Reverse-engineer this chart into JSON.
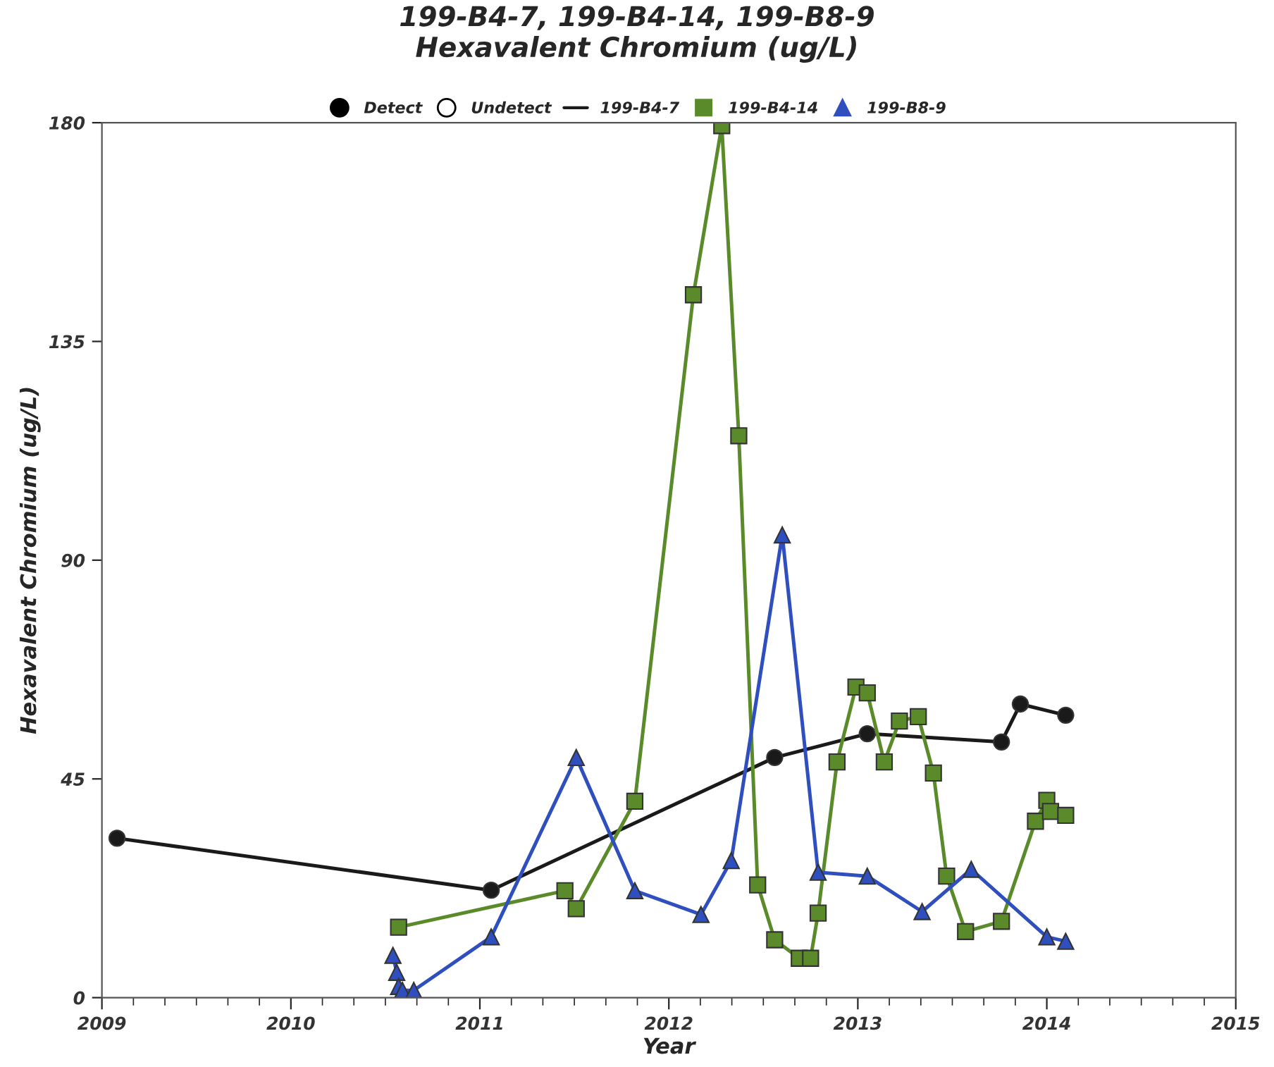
{
  "chart_data": {
    "type": "line",
    "title": "199-B4-7, 199-B4-14, 199-B8-9\nHexavalent Chromium (ug/L)",
    "xlabel": "Year",
    "ylabel": "Hexavalent Chromium (ug/L)",
    "xlim": [
      2009,
      2015
    ],
    "xticks": [
      2009,
      2010,
      2011,
      2012,
      2013,
      2014,
      2015
    ],
    "ylim": [
      0,
      180
    ],
    "yticks": [
      0,
      45,
      90,
      135,
      180
    ],
    "grid": false,
    "legend": "top",
    "annotations": [
      "Detect",
      "Undetect"
    ],
    "series": [
      {
        "name": "199-B4-7",
        "color": "#1a1a1a",
        "marker": "circle",
        "x": [
          2009.08,
          2011.06,
          2012.56,
          2013.05,
          2013.76,
          2013.86,
          2014.1
        ],
        "values": [
          32.8,
          22.1,
          49.4,
          54.3,
          52.6,
          60.4,
          58.1
        ]
      },
      {
        "name": "199-B4-14",
        "color": "#5a8a2a",
        "marker": "square",
        "x": [
          2010.57,
          2011.45,
          2011.51,
          2011.82,
          2012.13,
          2012.28,
          2012.37,
          2012.47,
          2012.56,
          2012.69,
          2012.75,
          2012.79,
          2012.89,
          2012.99,
          2013.05,
          2013.14,
          2013.22,
          2013.32,
          2013.4,
          2013.47,
          2013.57,
          2013.76,
          2013.94,
          2014.0,
          2014.02,
          2014.1
        ],
        "values": [
          14.5,
          22,
          18.3,
          40.4,
          144.6,
          179.4,
          115.6,
          23.2,
          11.9,
          8.1,
          8.1,
          17.4,
          48.5,
          63.9,
          62.7,
          48.5,
          56.9,
          57.8,
          46.2,
          25,
          13.6,
          15.7,
          36.3,
          40.6,
          38.3,
          37.5
        ]
      },
      {
        "name": "199-B8-9",
        "color": "#2f4fbf",
        "marker": "triangle",
        "x": [
          2010.54,
          2010.56,
          2010.57,
          2010.59,
          2010.65,
          2011.06,
          2011.51,
          2011.82,
          2012.17,
          2012.33,
          2012.6,
          2012.79,
          2013.05,
          2013.34,
          2013.6,
          2014.0,
          2014.1
        ],
        "values": [
          8.7,
          5.2,
          2.3,
          1.5,
          1.5,
          12.5,
          49.4,
          22,
          17.1,
          28.2,
          95.2,
          25.8,
          25,
          17.7,
          26.4,
          12.5,
          11.6
        ]
      }
    ]
  }
}
